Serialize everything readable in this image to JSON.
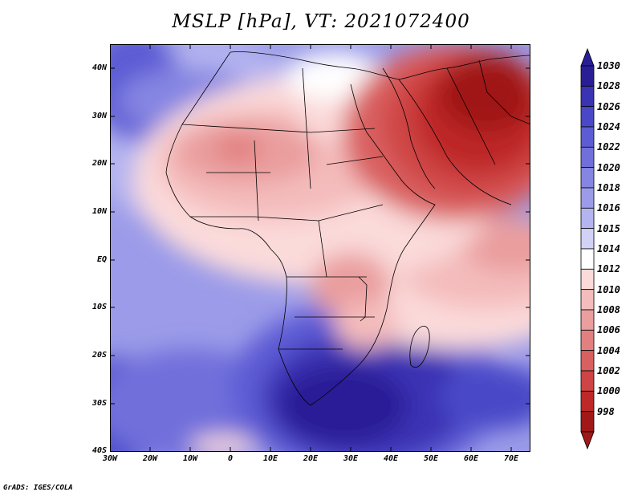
{
  "title": "MSLP [hPa], VT: 2021072400",
  "credit": "GrADS: IGES/COLA",
  "map": {
    "lat_labels": [
      "40N",
      "30N",
      "20N",
      "10N",
      "EQ",
      "10S",
      "20S",
      "30S",
      "40S"
    ],
    "lon_labels": [
      "30W",
      "20W",
      "10W",
      "0",
      "10E",
      "20E",
      "30E",
      "40E",
      "50E",
      "60E",
      "70E"
    ]
  },
  "colorbar": {
    "levels": [
      "1030",
      "1028",
      "1026",
      "1024",
      "1022",
      "1020",
      "1018",
      "1016",
      "1015",
      "1014",
      "1012",
      "1010",
      "1008",
      "1006",
      "1004",
      "1002",
      "1000",
      "998"
    ],
    "colors": [
      "#2a1e96",
      "#3a33b4",
      "#4a48c8",
      "#5d5cd4",
      "#7170db",
      "#8585e2",
      "#9b9be9",
      "#b4b4f0",
      "#d2d2f7",
      "#ffffff",
      "#fbdada",
      "#f4bcbc",
      "#ea9e9e",
      "#e28080",
      "#d96060",
      "#cf4444",
      "#bd2828",
      "#a01818"
    ]
  }
}
